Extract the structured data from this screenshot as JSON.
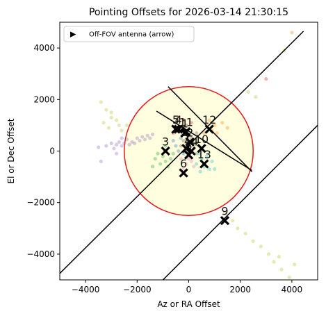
{
  "chart_data": {
    "type": "scatter",
    "title": "Pointing Offsets for 2026-03-14 21:30:15",
    "xlabel": "Az or RA Offset",
    "ylabel": "El or Dec Offset",
    "xlim": [
      -5000,
      5000
    ],
    "ylim": [
      -5000,
      5000
    ],
    "xticks": [
      -4000,
      -2000,
      0,
      2000,
      4000
    ],
    "yticks": [
      -4000,
      -2000,
      0,
      2000,
      4000
    ],
    "xtick_labels": [
      "−4000",
      "−2000",
      "0",
      "2000",
      "4000"
    ],
    "ytick_labels": [
      "−4000",
      "−2000",
      "0",
      "2000",
      "4000"
    ],
    "legend": {
      "placement": "top-left",
      "entries": [
        "Off-FOV antenna (arrow)"
      ],
      "marker": "▶"
    },
    "fov_circle": {
      "center": [
        0,
        0
      ],
      "radius": 2500,
      "edge_color": "#e31a1c",
      "fill_color": "#ffffe0"
    },
    "lines": [
      {
        "x": [
          -5000,
          4450
        ],
        "y": [
          -4750,
          4650
        ]
      },
      {
        "x": [
          -1000,
          5000
        ],
        "y": [
          -5000,
          1000
        ]
      },
      {
        "x": [
          -1250,
          2450
        ],
        "y": [
          1550,
          -750
        ]
      },
      {
        "x": [
          -800,
          2450
        ],
        "y": [
          2500,
          -800
        ]
      }
    ],
    "antennas": [
      {
        "label": "1",
        "x": -150,
        "y": 700
      },
      {
        "label": "2",
        "x": 50,
        "y": 350
      },
      {
        "label": "3",
        "x": -900,
        "y": 0
      },
      {
        "label": "4",
        "x": -400,
        "y": 850
      },
      {
        "label": "5",
        "x": -500,
        "y": 850
      },
      {
        "label": "6",
        "x": -200,
        "y": -850
      },
      {
        "label": "7",
        "x": -100,
        "y": 100
      },
      {
        "label": "8",
        "x": 0,
        "y": -150
      },
      {
        "label": "9",
        "x": 1400,
        "y": -2700
      },
      {
        "label": "10",
        "x": 500,
        "y": 100
      },
      {
        "label": "11",
        "x": -100,
        "y": 750
      },
      {
        "label": "12",
        "x": 800,
        "y": 850
      },
      {
        "label": "13",
        "x": 600,
        "y": -500
      },
      {
        "label": "14",
        "x": 100,
        "y": 0
      }
    ],
    "history_series": [
      {
        "color": "#9467bd",
        "points": [
          [
            -3200,
            200
          ],
          [
            -3000,
            300
          ],
          [
            -2900,
            100
          ],
          [
            -2800,
            250
          ],
          [
            -2700,
            350
          ],
          [
            -2600,
            200
          ],
          [
            -2500,
            300
          ],
          [
            -2400,
            450
          ],
          [
            -2300,
            250
          ],
          [
            -2200,
            350
          ],
          [
            -2100,
            300
          ],
          [
            -2000,
            500
          ],
          [
            -1900,
            400
          ],
          [
            -1800,
            550
          ],
          [
            -1700,
            450
          ],
          [
            -1600,
            600
          ],
          [
            -1500,
            500
          ],
          [
            -1400,
            650
          ],
          [
            -3400,
            -400
          ],
          [
            -2800,
            -100
          ],
          [
            -3500,
            150
          ],
          [
            -2600,
            500
          ]
        ]
      },
      {
        "color": "#bcbd22",
        "points": [
          [
            -3400,
            1900
          ],
          [
            -3200,
            1600
          ],
          [
            -3000,
            1300
          ],
          [
            -2800,
            1200
          ],
          [
            -3300,
            1100
          ],
          [
            -3100,
            900
          ],
          [
            -2700,
            1000
          ],
          [
            -2600,
            800
          ],
          [
            1400,
            -2400
          ],
          [
            1700,
            -2700
          ],
          [
            1900,
            -3000
          ],
          [
            2200,
            -3200
          ],
          [
            2500,
            -3500
          ],
          [
            2800,
            -3700
          ],
          [
            3100,
            -4000
          ],
          [
            3300,
            -4300
          ],
          [
            3600,
            -4600
          ],
          [
            3900,
            -4900
          ],
          [
            4100,
            -4400
          ],
          [
            3500,
            -4100
          ],
          [
            2300,
            2300
          ],
          [
            2600,
            2100
          ],
          [
            3700,
            3900
          ],
          [
            -3000,
            1500
          ],
          [
            -2400,
            1000
          ]
        ]
      },
      {
        "color": "#2ca02c",
        "points": [
          [
            -1300,
            -300
          ],
          [
            -1200,
            -100
          ],
          [
            -1100,
            -500
          ],
          [
            -1000,
            -200
          ],
          [
            -900,
            -400
          ],
          [
            -800,
            -600
          ],
          [
            -700,
            -300
          ],
          [
            -1400,
            -600
          ],
          [
            -900,
            200
          ],
          [
            -600,
            -100
          ]
        ]
      },
      {
        "color": "#17becf",
        "points": [
          [
            400,
            -100
          ],
          [
            500,
            -300
          ],
          [
            700,
            -200
          ],
          [
            600,
            -600
          ],
          [
            800,
            -700
          ],
          [
            900,
            -400
          ],
          [
            300,
            -500
          ],
          [
            1000,
            -700
          ],
          [
            450,
            -800
          ]
        ]
      },
      {
        "color": "#ff7f0e",
        "points": [
          [
            700,
            1000
          ],
          [
            900,
            800
          ],
          [
            1100,
            700
          ],
          [
            1300,
            1100
          ],
          [
            600,
            700
          ],
          [
            1000,
            1000
          ],
          [
            1500,
            900
          ],
          [
            800,
            1200
          ],
          [
            4000,
            4600
          ]
        ]
      },
      {
        "color": "#d62728",
        "points": [
          [
            -500,
            1100
          ],
          [
            -300,
            900
          ],
          [
            -200,
            1200
          ],
          [
            -600,
            700
          ],
          [
            -100,
            1000
          ],
          [
            100,
            1100
          ],
          [
            -400,
            1300
          ],
          [
            3000,
            2800
          ]
        ]
      },
      {
        "color": "#8c564b",
        "points": [
          [
            -200,
            400
          ],
          [
            0,
            600
          ],
          [
            200,
            300
          ],
          [
            100,
            500
          ],
          [
            -300,
            200
          ],
          [
            300,
            700
          ],
          [
            -100,
            300
          ]
        ]
      },
      {
        "color": "#e377c2",
        "points": [
          [
            -300,
            -300
          ],
          [
            -100,
            -500
          ],
          [
            100,
            -400
          ],
          [
            -200,
            -700
          ],
          [
            0,
            -300
          ],
          [
            200,
            -600
          ]
        ]
      },
      {
        "color": "#7f7f7f",
        "points": [
          [
            200,
            100
          ],
          [
            400,
            200
          ],
          [
            300,
            -100
          ],
          [
            -100,
            200
          ],
          [
            100,
            400
          ]
        ]
      },
      {
        "color": "#1f77b4",
        "points": [
          [
            -600,
            400
          ],
          [
            -500,
            200
          ],
          [
            -300,
            500
          ],
          [
            -400,
            0
          ],
          [
            -200,
            -100
          ]
        ]
      }
    ]
  }
}
